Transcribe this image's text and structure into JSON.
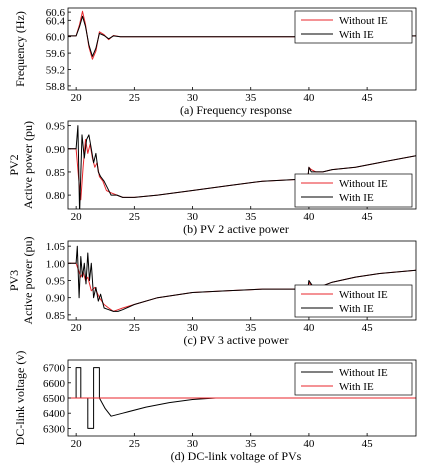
{
  "colors": {
    "without_ie": "#e8262b",
    "with_ie": "#000000",
    "frame": "#000000"
  },
  "chart_data": [
    {
      "type": "line",
      "caption": "(a) Frequency response",
      "ylabel": "Frequency (Hz)",
      "xlim": [
        19.3,
        49.2
      ],
      "ylim": [
        58.7,
        60.7
      ],
      "yticks": [
        58.8,
        59.2,
        59.6,
        60.0,
        60.4,
        60.6
      ],
      "xticks": [
        20,
        25,
        30,
        35,
        40,
        45
      ],
      "legend": {
        "position": "top-right",
        "entries": [
          "Without IE",
          "With IE"
        ]
      },
      "series": [
        {
          "name": "Without IE",
          "color": "#e8262b",
          "x": [
            19.3,
            20.0,
            20.3,
            20.55,
            20.8,
            21.1,
            21.4,
            21.7,
            22.0,
            22.4,
            22.8,
            23.2,
            23.8,
            25,
            30,
            39.8,
            40.1,
            40.4,
            40.7,
            41.2,
            42,
            49.2
          ],
          "y": [
            60.02,
            60.02,
            60.3,
            60.62,
            60.3,
            59.75,
            59.45,
            59.65,
            60.12,
            60.05,
            59.93,
            60.03,
            60.0,
            60.0,
            60.0,
            60.0,
            59.93,
            59.86,
            59.97,
            60.01,
            60.0,
            60.02
          ]
        },
        {
          "name": "With IE",
          "color": "#000000",
          "x": [
            19.3,
            20.0,
            20.3,
            20.55,
            20.8,
            21.1,
            21.4,
            21.7,
            22.0,
            22.4,
            22.8,
            23.2,
            23.8,
            25,
            30,
            39.8,
            40.1,
            40.4,
            40.7,
            41.2,
            42,
            49.2
          ],
          "y": [
            60.02,
            60.02,
            60.25,
            60.5,
            60.25,
            59.8,
            59.52,
            59.72,
            60.08,
            60.03,
            59.95,
            60.02,
            60.0,
            60.0,
            60.0,
            60.0,
            59.95,
            59.9,
            59.98,
            60.01,
            60.0,
            60.02
          ]
        }
      ]
    },
    {
      "type": "line",
      "caption": "(b) PV 2 active power",
      "ylabel_top": "PV2",
      "ylabel": "Active power (pu)",
      "xlim": [
        19.3,
        49.2
      ],
      "ylim": [
        0.77,
        0.96
      ],
      "yticks": [
        0.8,
        0.85,
        0.9,
        0.95
      ],
      "xticks": [
        20,
        25,
        30,
        35,
        40,
        45
      ],
      "legend": {
        "position": "bottom-right",
        "entries": [
          "Without IE",
          "With IE"
        ]
      },
      "series": [
        {
          "name": "Without IE",
          "color": "#e8262b",
          "x": [
            19.3,
            20.0,
            20.2,
            20.4,
            20.6,
            20.8,
            21.0,
            21.2,
            21.4,
            21.6,
            21.8,
            22.0,
            22.3,
            22.6,
            23.0,
            23.5,
            24.0,
            25,
            27,
            30,
            33,
            36,
            39.9,
            40.0,
            40.2,
            40.6,
            41.2,
            42,
            44,
            46,
            49.2
          ],
          "y": [
            0.9,
            0.9,
            0.84,
            0.79,
            0.86,
            0.92,
            0.89,
            0.91,
            0.88,
            0.86,
            0.87,
            0.84,
            0.83,
            0.81,
            0.805,
            0.8,
            0.795,
            0.795,
            0.8,
            0.81,
            0.82,
            0.83,
            0.835,
            0.86,
            0.855,
            0.85,
            0.85,
            0.855,
            0.86,
            0.87,
            0.885
          ]
        },
        {
          "name": "With IE",
          "color": "#000000",
          "x": [
            19.3,
            20.0,
            20.15,
            20.3,
            20.5,
            20.7,
            20.9,
            21.1,
            21.3,
            21.5,
            21.7,
            21.9,
            22.1,
            22.4,
            22.7,
            23.0,
            23.5,
            24.0,
            25,
            27,
            30,
            33,
            36,
            39.9,
            40.0,
            40.2,
            40.6,
            41.2,
            42,
            44,
            46,
            49.2
          ],
          "y": [
            0.9,
            0.9,
            0.95,
            0.76,
            0.93,
            0.88,
            0.92,
            0.93,
            0.9,
            0.87,
            0.89,
            0.85,
            0.84,
            0.83,
            0.815,
            0.8,
            0.8,
            0.795,
            0.795,
            0.8,
            0.81,
            0.82,
            0.83,
            0.835,
            0.86,
            0.85,
            0.85,
            0.85,
            0.855,
            0.86,
            0.87,
            0.885
          ]
        }
      ]
    },
    {
      "type": "line",
      "caption": "(c) PV 3 active power",
      "ylabel_top": "PV3",
      "ylabel": "Active power (pu)",
      "xlim": [
        19.3,
        49.2
      ],
      "ylim": [
        0.835,
        1.065
      ],
      "yticks": [
        0.85,
        0.9,
        0.95,
        1,
        1.05
      ],
      "xticks": [
        20,
        25,
        30,
        35,
        40,
        45
      ],
      "legend": {
        "position": "bottom-right",
        "entries": [
          "Without IE",
          "With IE"
        ]
      },
      "series": [
        {
          "name": "Without IE",
          "color": "#e8262b",
          "x": [
            19.3,
            20.0,
            20.2,
            20.4,
            20.6,
            20.8,
            21.0,
            21.3,
            21.6,
            22.0,
            22.4,
            22.8,
            23.2,
            23.6,
            24.0,
            25,
            27,
            30,
            33,
            36,
            39.9,
            40.0,
            40.3,
            40.7,
            41.2,
            42,
            44,
            46,
            49.2
          ],
          "y": [
            1.0,
            1.0,
            0.98,
            0.96,
            0.975,
            0.95,
            0.96,
            0.92,
            0.93,
            0.9,
            0.88,
            0.87,
            0.86,
            0.865,
            0.87,
            0.88,
            0.9,
            0.915,
            0.92,
            0.925,
            0.925,
            0.945,
            0.93,
            0.93,
            0.935,
            0.945,
            0.96,
            0.97,
            0.98
          ]
        },
        {
          "name": "With IE",
          "color": "#000000",
          "x": [
            19.3,
            20.0,
            20.1,
            20.25,
            20.4,
            20.55,
            20.7,
            20.85,
            21.0,
            21.15,
            21.3,
            21.5,
            21.7,
            21.9,
            22.1,
            22.4,
            22.8,
            23.2,
            23.6,
            24.0,
            25,
            27,
            30,
            33,
            36,
            39.9,
            40.0,
            40.3,
            40.7,
            41.2,
            42,
            44,
            46,
            49.2
          ],
          "y": [
            1.0,
            1.0,
            1.05,
            0.9,
            1.02,
            0.96,
            1.0,
            0.94,
            1.03,
            0.95,
            1.0,
            0.9,
            0.93,
            0.89,
            0.91,
            0.87,
            0.865,
            0.86,
            0.86,
            0.865,
            0.88,
            0.9,
            0.915,
            0.92,
            0.925,
            0.925,
            0.95,
            0.935,
            0.93,
            0.935,
            0.945,
            0.96,
            0.97,
            0.98
          ]
        }
      ]
    },
    {
      "type": "line",
      "caption": "(d) DC-link voltage of PVs",
      "ylabel": "DC-link voltage (v)",
      "xlim": [
        19.3,
        49.2
      ],
      "ylim": [
        6250,
        6750
      ],
      "yticks": [
        6300,
        6400,
        6500,
        6600,
        6700
      ],
      "xticks": [
        20,
        25,
        30,
        35,
        40,
        45
      ],
      "legend": {
        "position": "top-right",
        "entries": [
          "Without IE",
          "With IE"
        ]
      },
      "series": [
        {
          "name": "Without IE",
          "color": "#000000",
          "x": [
            19.3,
            20.0,
            20.0,
            20.4,
            20.4,
            21.0,
            21.0,
            21.5,
            21.5,
            22.0,
            22.0,
            22.5,
            23.0,
            24,
            26,
            28,
            30,
            32,
            49.2
          ],
          "y": [
            6500,
            6500,
            6700,
            6700,
            6500,
            6500,
            6300,
            6300,
            6700,
            6700,
            6500,
            6430,
            6380,
            6400,
            6440,
            6470,
            6490,
            6500,
            6500
          ]
        },
        {
          "name": "With IE",
          "color": "#e8262b",
          "x": [
            19.3,
            49.2
          ],
          "y": [
            6500,
            6500
          ]
        }
      ]
    }
  ]
}
